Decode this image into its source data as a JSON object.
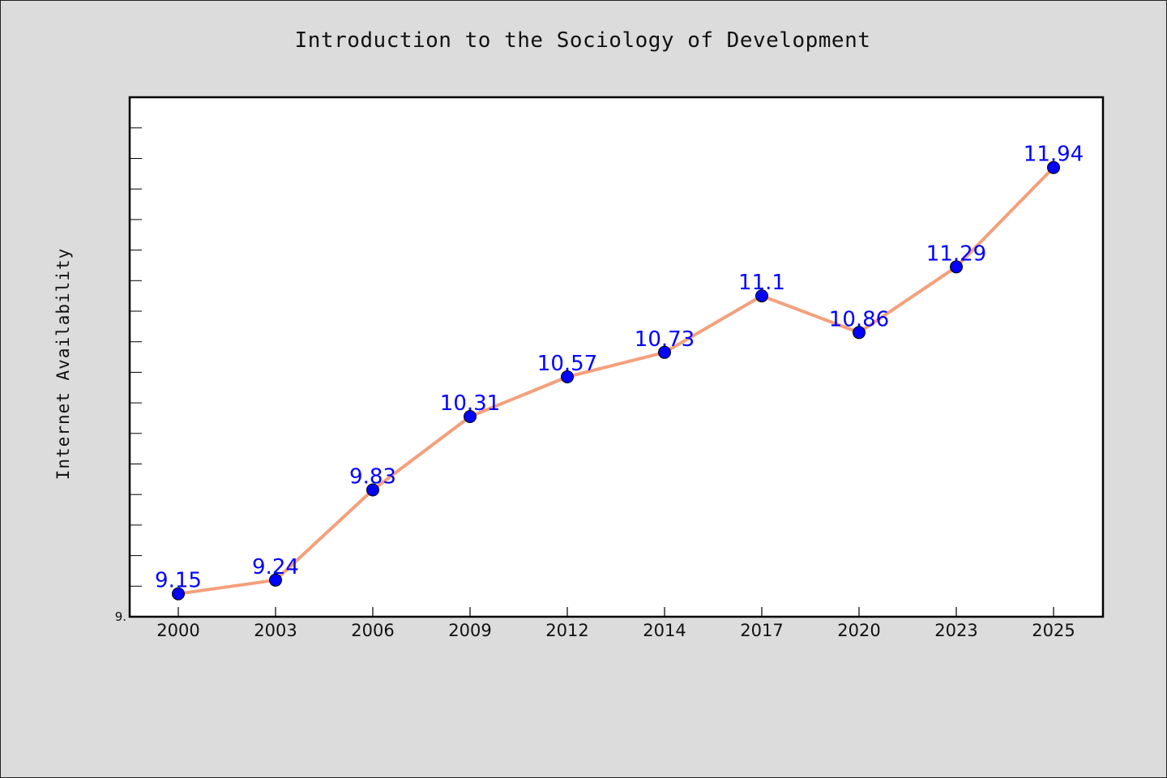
{
  "chart_data": {
    "type": "line",
    "title": "Introduction to the Sociology of Development",
    "xlabel": "",
    "ylabel": "Internet Availability",
    "categories": [
      "2000",
      "2003",
      "2006",
      "2009",
      "2012",
      "2014",
      "2017",
      "2020",
      "2023",
      "2025"
    ],
    "series": [
      {
        "values": [
          9.15,
          9.24,
          9.83,
          10.31,
          10.57,
          10.73,
          11.1,
          10.86,
          11.29,
          11.94
        ],
        "labels": [
          "9.15",
          "9.24",
          "9.83",
          "10.31",
          "10.57",
          "10.73",
          "11.1",
          "10.86",
          "11.29",
          "11.94"
        ]
      }
    ],
    "y_tick_labels": [
      "9."
    ],
    "ylim": [
      9.0,
      12.4
    ],
    "grid": false,
    "legend": "none",
    "colors": {
      "line": "#f4a07c",
      "marker": "#0000ff",
      "marker_edge": "#000000",
      "data_label": "#0000ff",
      "plot_background": "#ffffff",
      "figure_background": "#dcdcdc"
    }
  }
}
